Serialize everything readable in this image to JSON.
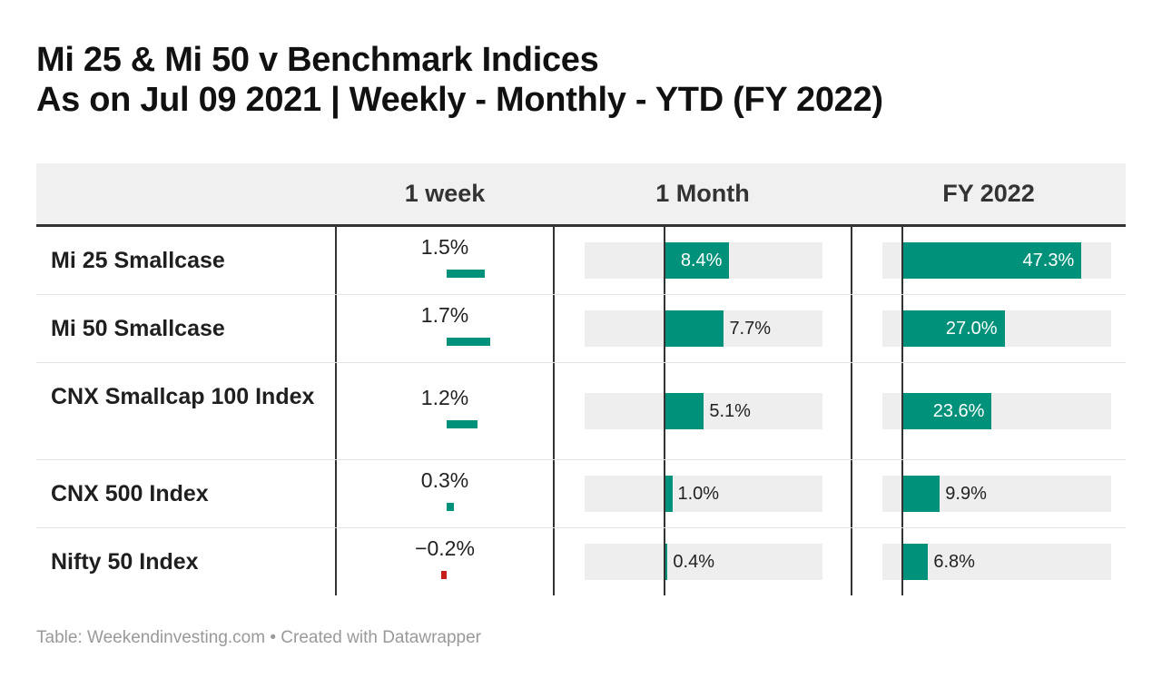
{
  "title_line1": "Mi 25 & Mi 50 v Benchmark Indices",
  "title_line2": "As on Jul 09 2021  |  Weekly - Monthly - YTD (FY 2022)",
  "columns": {
    "name": "",
    "week": "1 week",
    "month": "1 Month",
    "fy": "FY 2022"
  },
  "colors": {
    "positive": "#00917a",
    "negative": "#c71e1d",
    "track": "#eeeeee",
    "header_bg": "#f0f0f0"
  },
  "chart_data": {
    "type": "table",
    "columns": [
      "1 week",
      "1 Month",
      "FY 2022"
    ],
    "rows": [
      {
        "name": "Mi 25 Smallcase",
        "week": 1.5,
        "month": 8.4,
        "fy": 47.3,
        "week_label": "1.5%",
        "month_label": "8.4%",
        "fy_label": "47.3%"
      },
      {
        "name": "Mi 50 Smallcase",
        "week": 1.7,
        "month": 7.7,
        "fy": 27.0,
        "week_label": "1.7%",
        "month_label": "7.7%",
        "fy_label": "27.0%"
      },
      {
        "name": "CNX Smallcap 100 Index",
        "week": 1.2,
        "month": 5.1,
        "fy": 23.6,
        "week_label": "1.2%",
        "month_label": "5.1%",
        "fy_label": "23.6%"
      },
      {
        "name": "CNX 500 Index",
        "week": 0.3,
        "month": 1.0,
        "fy": 9.9,
        "week_label": "0.3%",
        "month_label": "1.0%",
        "fy_label": "9.9%"
      },
      {
        "name": "Nifty 50 Index",
        "week": -0.2,
        "month": 0.4,
        "fy": 6.8,
        "week_label": "−0.2%",
        "month_label": "0.4%",
        "fy_label": "6.8%"
      }
    ]
  },
  "footer": "Table: Weekendinvesting.com • Created with Datawrapper"
}
